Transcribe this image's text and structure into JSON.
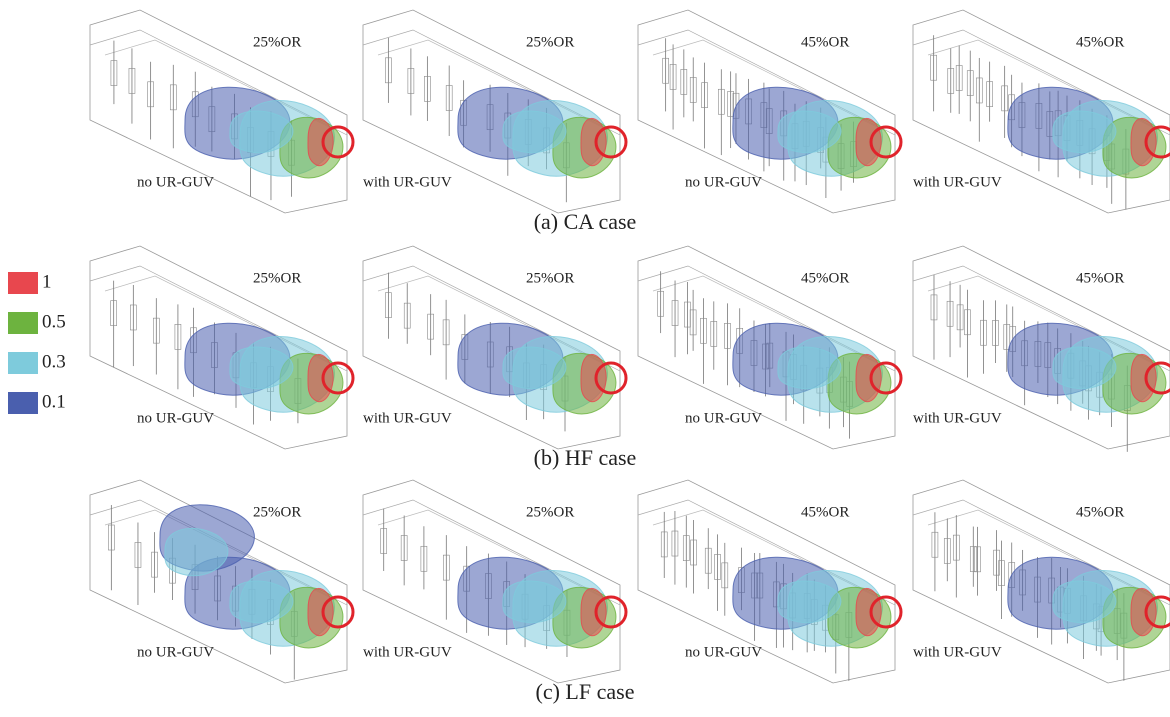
{
  "legend": [
    {
      "label": "1",
      "color": "#e8474e"
    },
    {
      "label": "0.5",
      "color": "#6db33f"
    },
    {
      "label": "0.3",
      "color": "#7ecbdc"
    },
    {
      "label": "0.1",
      "color": "#4a5fae"
    }
  ],
  "rows": [
    {
      "caption": "(a) CA case",
      "panels": [
        {
          "ratio": "25%OR",
          "condition": "no UR-GUV"
        },
        {
          "ratio": "25%OR",
          "condition": "with UR-GUV"
        },
        {
          "ratio": "45%OR",
          "condition": "no UR-GUV"
        },
        {
          "ratio": "45%OR",
          "condition": "with UR-GUV"
        }
      ]
    },
    {
      "caption": "(b) HF case",
      "panels": [
        {
          "ratio": "25%OR",
          "condition": "no UR-GUV"
        },
        {
          "ratio": "25%OR",
          "condition": "with UR-GUV"
        },
        {
          "ratio": "45%OR",
          "condition": "no UR-GUV"
        },
        {
          "ratio": "45%OR",
          "condition": "with UR-GUV"
        }
      ]
    },
    {
      "caption": "(c) LF case",
      "panels": [
        {
          "ratio": "25%OR",
          "condition": "no UR-GUV"
        },
        {
          "ratio": "25%OR",
          "condition": "with UR-GUV"
        },
        {
          "ratio": "45%OR",
          "condition": "no UR-GUV"
        },
        {
          "ratio": "45%OR",
          "condition": "with UR-GUV"
        }
      ]
    }
  ]
}
